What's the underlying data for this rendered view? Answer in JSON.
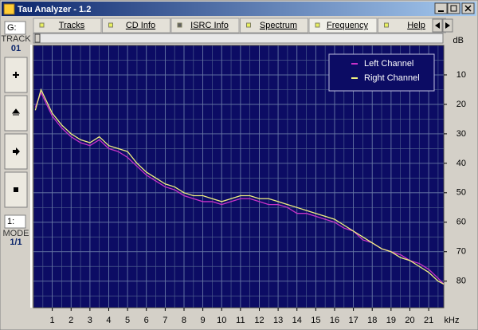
{
  "window": {
    "title": "Tau Analyzer - 1.2"
  },
  "tabs": [
    "Tracks",
    "CD Info",
    "ISRC Info",
    "Spectrum",
    "Frequency",
    "Help"
  ],
  "sidebar": {
    "drive": "G:",
    "track_label": "TRACK",
    "track": "01",
    "mode_select": "1:",
    "mode_label": "MODE",
    "mode": "1/1"
  },
  "chart_data": {
    "type": "line",
    "x_label": "kHz",
    "y_label": "dB",
    "x": [
      0.1,
      0.4,
      1,
      1.5,
      2,
      2.5,
      3,
      3.5,
      4,
      4.5,
      5,
      5.5,
      6,
      6.5,
      7,
      7.5,
      8,
      8.5,
      9,
      9.5,
      10,
      10.5,
      11,
      11.5,
      12,
      12.5,
      13,
      13.5,
      14,
      14.5,
      15,
      15.5,
      16,
      16.5,
      17,
      17.5,
      18,
      18.5,
      19,
      19.5,
      20,
      20.5,
      21,
      21.5,
      21.8
    ],
    "series": [
      {
        "name": "Left Channel",
        "color": "#c832c8",
        "values": [
          21,
          16,
          24,
          28,
          31,
          33,
          34,
          32,
          35,
          36,
          38,
          41,
          44,
          46,
          48,
          49,
          51,
          52,
          53,
          53,
          54,
          53,
          52,
          52,
          53,
          54,
          54,
          55,
          57,
          57,
          58,
          59,
          60,
          62,
          63,
          66,
          67,
          69,
          70,
          71,
          73,
          74,
          76,
          79,
          81
        ]
      },
      {
        "name": "Right Channel",
        "color": "#f0f080",
        "values": [
          22,
          15,
          23,
          27,
          30,
          32,
          33,
          31,
          34,
          35,
          36,
          40,
          43,
          45,
          47,
          48,
          50,
          51,
          51,
          52,
          53,
          52,
          51,
          51,
          52,
          52,
          53,
          54,
          55,
          56,
          57,
          58,
          59,
          61,
          63,
          65,
          67,
          69,
          70,
          72,
          73,
          75,
          77,
          80,
          81
        ]
      }
    ],
    "xlim": [
      0,
      21.8
    ],
    "ylim": [
      89,
      0
    ],
    "xticks": [
      1,
      2,
      3,
      4,
      5,
      6,
      7,
      8,
      9,
      10,
      11,
      12,
      13,
      14,
      15,
      16,
      17,
      18,
      19,
      20,
      21
    ],
    "yticks": [
      10,
      20,
      30,
      40,
      50,
      60,
      70,
      80
    ],
    "grid": true,
    "legend": "top-right"
  }
}
